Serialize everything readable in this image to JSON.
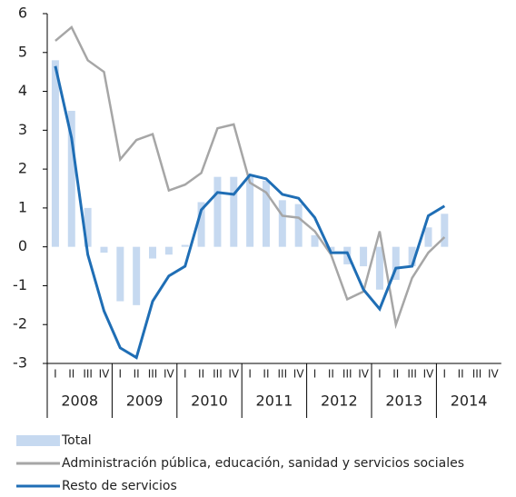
{
  "chart_data": {
    "type": "bar-line",
    "categories": [
      "I",
      "II",
      "III",
      "IV",
      "I",
      "II",
      "III",
      "IV",
      "I",
      "II",
      "III",
      "IV",
      "I",
      "II",
      "III",
      "IV",
      "I",
      "II",
      "III",
      "IV",
      "I",
      "II",
      "III",
      "IV",
      "I",
      "II",
      "III",
      "IV"
    ],
    "years": [
      "2008",
      "2009",
      "2010",
      "2011",
      "2012",
      "2013",
      "2014"
    ],
    "ylim": [
      -3,
      6
    ],
    "yticks": [
      -3,
      -2,
      -1,
      0,
      1,
      2,
      3,
      4,
      5,
      6
    ],
    "series": [
      {
        "name": "Total",
        "kind": "bar",
        "color": "#c6d9f0",
        "values": [
          4.8,
          3.5,
          1.0,
          -0.15,
          -1.4,
          -1.5,
          -0.3,
          -0.2,
          0.05,
          1.15,
          1.8,
          1.8,
          1.8,
          1.7,
          1.2,
          1.1,
          0.3,
          -0.1,
          -0.45,
          -0.5,
          -1.1,
          -0.85,
          -0.5,
          0.5,
          0.85,
          null,
          null,
          null
        ]
      },
      {
        "name": "Administración pública, educación, sanidad y servicios sociales",
        "kind": "line",
        "color": "#a6a6a6",
        "values": [
          5.3,
          5.65,
          4.8,
          4.5,
          2.25,
          2.75,
          2.9,
          1.45,
          1.6,
          1.9,
          3.05,
          3.15,
          1.65,
          1.4,
          0.8,
          0.75,
          0.4,
          -0.2,
          -1.35,
          -1.15,
          0.4,
          -2.0,
          -0.8,
          -0.15,
          0.25,
          null,
          null,
          null
        ]
      },
      {
        "name": "Resto de servicios",
        "kind": "line",
        "color": "#1f6eb5",
        "values": [
          4.65,
          2.8,
          -0.2,
          -1.65,
          -2.6,
          -2.85,
          -1.4,
          -0.75,
          -0.5,
          0.95,
          1.4,
          1.35,
          1.85,
          1.75,
          1.35,
          1.25,
          0.75,
          -0.15,
          -0.15,
          -1.1,
          -1.6,
          -0.55,
          -0.5,
          0.8,
          1.05,
          null,
          null,
          null
        ]
      }
    ]
  }
}
